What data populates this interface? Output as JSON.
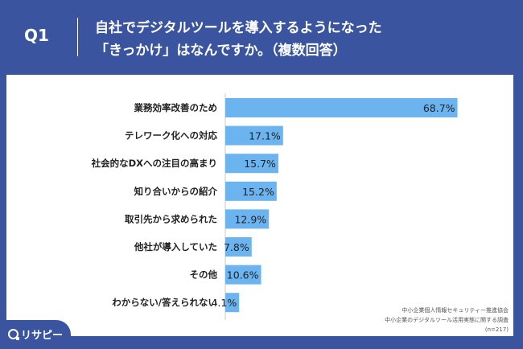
{
  "header": {
    "q_label": "Q1",
    "title_line1": "自社でデジタルツールを導入するようになった",
    "title_line2": "「きっかけ」はなんですか。（複数回答）"
  },
  "chart_data": {
    "type": "bar",
    "orientation": "horizontal",
    "categories": [
      "業務効率改善のため",
      "テレワーク化への対応",
      "社会的なDXへの注目の高まり",
      "知り合いからの紹介",
      "取引先から求められた",
      "他社が導入していた",
      "その他",
      "わからない/答えられない"
    ],
    "values": [
      68.7,
      17.1,
      15.7,
      15.2,
      12.9,
      7.8,
      10.6,
      4.1
    ],
    "value_labels": [
      "68.7%",
      "17.1%",
      "15.7%",
      "15.2%",
      "12.9%",
      "7.8%",
      "10.6%",
      "4.1%"
    ],
    "unit": "%",
    "xlim": [
      0,
      100
    ],
    "bar_color": "#6cb4ef",
    "grid": false
  },
  "source": {
    "line1": "中小企業個人情報セキュリティー推進協会",
    "line2": "中小企業のデジタルツール活用実態に関する調査",
    "line3": "(n=217)"
  },
  "logo": {
    "text": "リサピー",
    "icon": "magnifier-icon"
  },
  "colors": {
    "background": "#3a54a0",
    "card": "#ffffff",
    "bar": "#6cb4ef"
  }
}
